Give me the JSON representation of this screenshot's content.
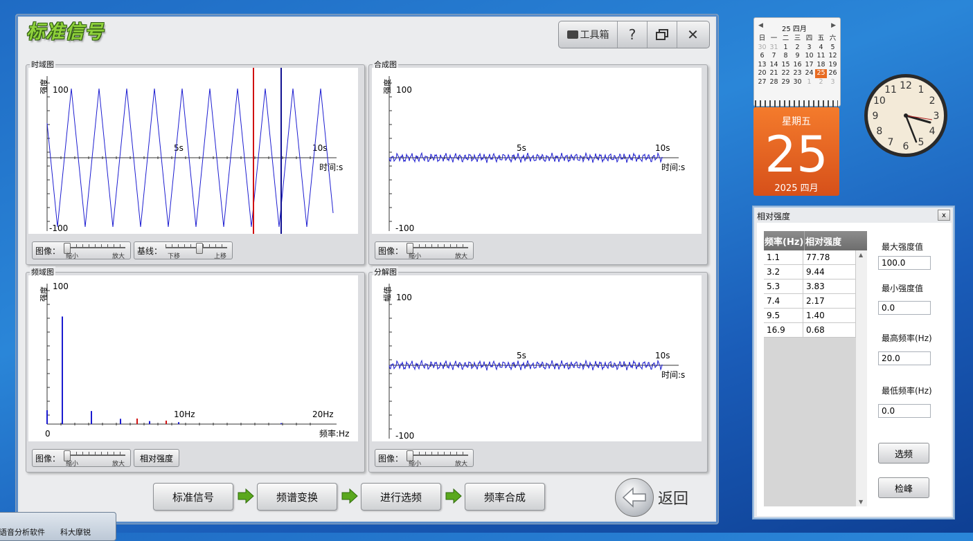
{
  "app": {
    "title": "标准信号"
  },
  "toolbar": {
    "toolbox_label": "工具箱",
    "help_label": "?",
    "restore_label": "",
    "close_label": "✕"
  },
  "panels": {
    "time": {
      "label": "时域图",
      "y_label": "强度",
      "y_max": "100",
      "y_min": "-100",
      "tick_5": "5s",
      "tick_10": "10s",
      "x_unit": "时间:s"
    },
    "synth": {
      "label": "合成图",
      "y_label": "强度",
      "y_max": "100",
      "y_min": "-100",
      "tick_5": "5s",
      "tick_10": "10s",
      "x_unit": "时间:s"
    },
    "freq": {
      "label": "频域图",
      "y_label": "强度",
      "y_max": "100",
      "origin": "0",
      "tick_10": "10Hz",
      "tick_20": "20Hz",
      "x_unit": "频率:Hz"
    },
    "decomp": {
      "label": "分解图",
      "y_label": "幅值",
      "y_max": "100",
      "y_min": "-100",
      "tick_5": "5s",
      "tick_10": "10s",
      "x_unit": "时间:s"
    }
  },
  "controls": {
    "image_label": "图像：",
    "zoom_out": "缩小",
    "zoom_in": "放大",
    "baseline_label": "基线：",
    "move_down": "下移",
    "move_up": "上移",
    "relative_strength_button": "相对强度"
  },
  "workflow": {
    "steps": [
      "标准信号",
      "频谱变换",
      "进行选频",
      "频率合成"
    ],
    "back_label": "返回"
  },
  "relative_window": {
    "title": "相对强度",
    "close": "x",
    "columns": [
      "频率(Hz)",
      "相对强度"
    ],
    "rows": [
      [
        "1.1",
        "77.78"
      ],
      [
        "3.2",
        "9.44"
      ],
      [
        "5.3",
        "3.83"
      ],
      [
        "7.4",
        "2.17"
      ],
      [
        "9.5",
        "1.40"
      ],
      [
        "16.9",
        "0.68"
      ]
    ],
    "max_strength_label": "最大强度值",
    "max_strength": "100.0",
    "min_strength_label": "最小强度值",
    "min_strength": "0.0",
    "max_freq_label": "最高频率(Hz)",
    "max_freq": "20.0",
    "min_freq_label": "最低频率(Hz)",
    "min_freq": "0.0",
    "select_button": "选频",
    "peak_button": "检峰"
  },
  "calendar": {
    "month_header": "25 四月",
    "weekdays": [
      "日",
      "一",
      "二",
      "三",
      "四",
      "五",
      "六"
    ],
    "weeks": [
      [
        "30",
        "31",
        "1",
        "2",
        "3",
        "4",
        "5"
      ],
      [
        "6",
        "7",
        "8",
        "9",
        "10",
        "11",
        "12"
      ],
      [
        "13",
        "14",
        "15",
        "16",
        "17",
        "18",
        "19"
      ],
      [
        "20",
        "21",
        "22",
        "23",
        "24",
        "25",
        "26"
      ],
      [
        "27",
        "28",
        "29",
        "30",
        "1",
        "2",
        "3"
      ]
    ],
    "weekday_name": "星期五",
    "day": "25",
    "year_month": "2025 四月"
  },
  "clock": {
    "numerals": [
      "12",
      "1",
      "2",
      "3",
      "4",
      "5",
      "6",
      "7",
      "8",
      "9",
      "10",
      "11"
    ]
  },
  "taskbar": {
    "popup_text_1": "语音分析软件",
    "popup_text_2": "科大摩锐"
  },
  "colors": {
    "signal": "#1a1ad0",
    "marker_red": "#d01010",
    "marker_blue": "#101090",
    "accent_orange": "#e86b22",
    "title_green": "#8fd13c"
  }
}
